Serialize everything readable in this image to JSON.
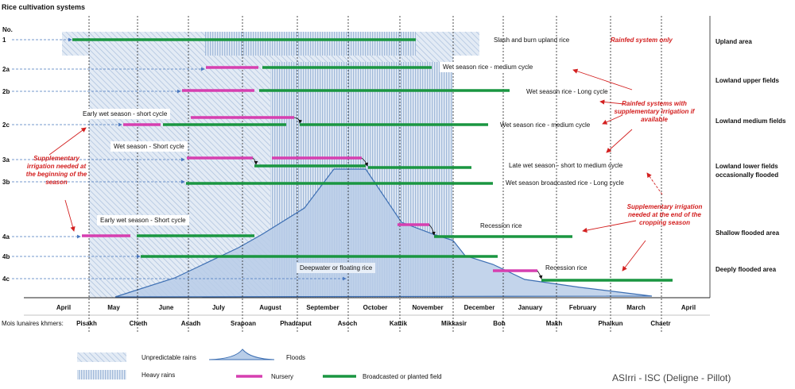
{
  "title": "Rice cultivation systems",
  "no_label": "No.",
  "rows": [
    "1",
    "2a",
    "2b",
    "2c",
    "3a",
    "3b",
    "4a",
    "4b",
    "4c"
  ],
  "areas": [
    "Upland area",
    "Lowland upper fields",
    "Lowland medium fields",
    "Lowland lower fields occasionally flooded",
    "Shallow flooded area",
    "Deeply flooded area"
  ],
  "months": [
    "April",
    "May",
    "June",
    "July",
    "August",
    "September",
    "October",
    "November",
    "December",
    "January",
    "February",
    "March",
    "April"
  ],
  "khmer_months_label": "Mois lunaires khmers:",
  "khmer_months": [
    "Pisakh",
    "Cheth",
    "Asadh",
    "Srapoan",
    "Phadraput",
    "Asoch",
    "Kattik",
    "Mikkasir",
    "Boh",
    "Makh",
    "Phalkun",
    "Chaetr"
  ],
  "labels": {
    "r1": "Slash and burn upland rice",
    "r1_note": "Rainfed system only",
    "r2a": "Wet season rice - medium cycle",
    "r2b": "Wet season rice - Long cycle",
    "r2c_early": "Early wet season - short cycle",
    "r2c": "Wet season rice - medium cycle",
    "r3a_early": "Wet season - Short cycle",
    "r3a": "Late wet season - short to medium  cycle",
    "r3b": "Wet season broadcasted rice - Long cycle",
    "r4a_early": "Early wet season - Short cycle",
    "r4a": "Recession rice",
    "r4c_deep": "Deepwater or floating rice",
    "r4c": "Recession rice"
  },
  "notes": {
    "supp_begin": "Supplementary irrigation needed at the beginning of the season",
    "rainfed_supp": "Rainfed systems with supplementary irrigation if available",
    "supp_end": "Supplementary irrigation needed at the end of the cropping season"
  },
  "legend": {
    "unpredictable": "Unpredictable rains",
    "heavy": "Heavy rains",
    "floods": "Floods",
    "nursery": "Nursery",
    "field": "Broadcasted or planted field"
  },
  "colors": {
    "field": "#1a9641",
    "nursery": "#d63fb0",
    "flood": "#b8cde8",
    "flood_line": "#3d6fb3",
    "note": "#d32020"
  },
  "credit": "ASIrri - ISC (Deligne - Pillot)"
}
